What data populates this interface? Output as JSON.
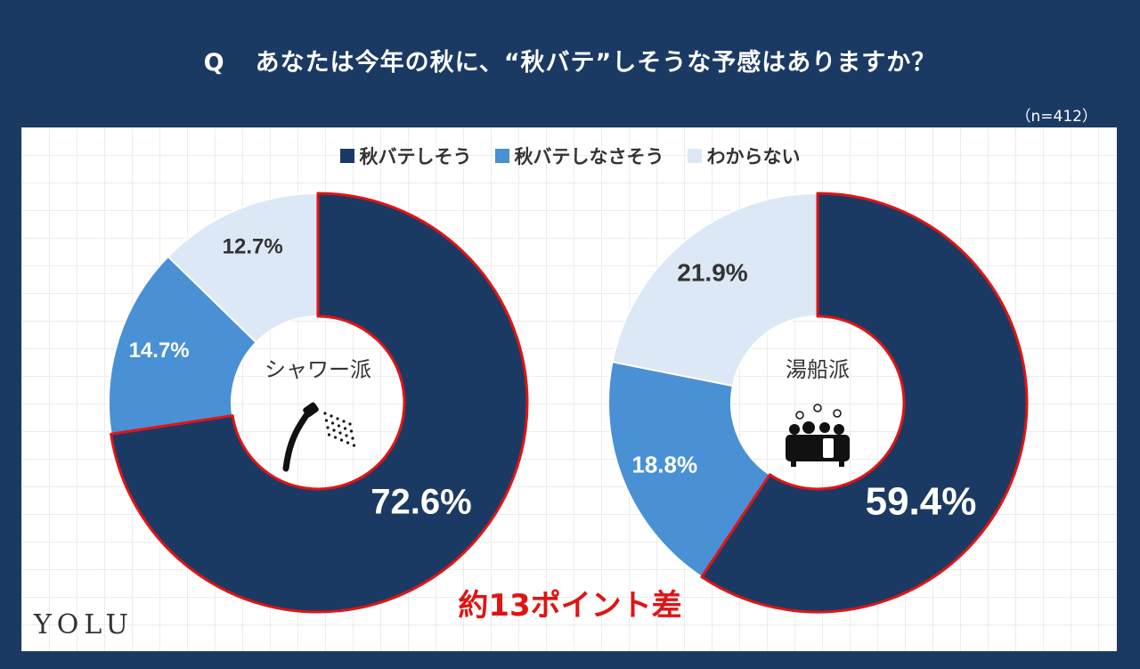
{
  "header": {
    "q_label": "Q",
    "question": "あなたは今年の秋に、“秋バテ”しそうな予感はありますか？",
    "sample_note": "（n=412）"
  },
  "legend": [
    {
      "label": "秋バテしそう",
      "color": "#1b3a63"
    },
    {
      "label": "秋バテしなさそう",
      "color": "#4a90d4"
    },
    {
      "label": "わからない",
      "color": "#dce8f5"
    }
  ],
  "colors": {
    "highlight_ring": "#e01414",
    "background": "#1b3a63"
  },
  "chart_data": [
    {
      "type": "pie",
      "center_label": "シャワー派",
      "center_icon": "shower-icon",
      "categories": [
        "秋バテしそう",
        "秋バテしなさそう",
        "わからない"
      ],
      "values": [
        72.6,
        14.7,
        12.7
      ],
      "value_labels": [
        "72.6%",
        "14.7%",
        "12.7%"
      ]
    },
    {
      "type": "pie",
      "center_label": "湯船派",
      "center_icon": "bathtub-icon",
      "categories": [
        "秋バテしそう",
        "秋バテしなさそう",
        "わからない"
      ],
      "values": [
        59.4,
        18.8,
        21.9
      ],
      "value_labels": [
        "59.4%",
        "18.8%",
        "21.9%"
      ]
    }
  ],
  "annotation": "約13ポイント差",
  "logo": "YOLU"
}
